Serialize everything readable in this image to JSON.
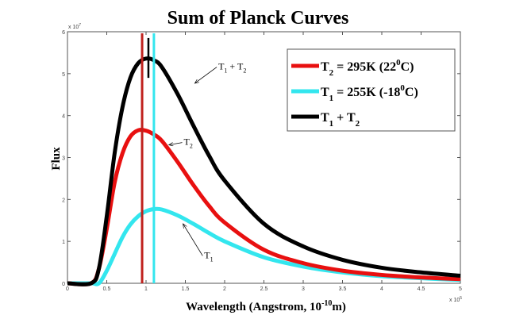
{
  "chart_data": {
    "type": "line",
    "title": "Sum of Planck Curves",
    "xlabel": "Wavelength (Angstrom, 10",
    "xlabel_exp": "-10",
    "xlabel_end": "m)",
    "ylabel": "Flux",
    "x_multiplier": "x 10",
    "x_multiplier_exp": "5",
    "y_multiplier": "x 10",
    "y_multiplier_exp": "7",
    "xlim": [
      0,
      5
    ],
    "ylim": [
      0,
      6
    ],
    "xticks": [
      "0",
      "0.5",
      "1",
      "1.5",
      "2",
      "2.5",
      "3",
      "3.5",
      "4",
      "4.5",
      "5"
    ],
    "yticks": [
      "0",
      "1",
      "2",
      "3",
      "4",
      "5",
      "6"
    ],
    "grid": false,
    "legend_position": "top-right",
    "x": [
      0,
      0.3,
      0.4,
      0.5,
      0.6,
      0.7,
      0.8,
      0.9,
      1.0,
      1.1,
      1.2,
      1.4,
      1.6,
      1.8,
      2.0,
      2.5,
      3.0,
      3.5,
      4.0,
      4.5,
      5.0
    ],
    "series": [
      {
        "key": "t2",
        "color": "#e81010",
        "legend": {
          "sym": "T",
          "sub": "2",
          "rest": " = 295K (22",
          "sup": "0",
          "end": "C)"
        },
        "values": [
          0,
          0,
          0.35,
          1.3,
          2.4,
          3.1,
          3.5,
          3.65,
          3.64,
          3.55,
          3.4,
          2.9,
          2.35,
          1.85,
          1.45,
          0.8,
          0.48,
          0.3,
          0.2,
          0.14,
          0.1
        ]
      },
      {
        "key": "t1",
        "color": "#33e6ee",
        "legend": {
          "sym": "T",
          "sub": "1",
          "rest": " = 255K (-18",
          "sup": "0",
          "end": "C)"
        },
        "values": [
          0,
          0,
          0,
          0.3,
          0.7,
          1.1,
          1.4,
          1.6,
          1.72,
          1.77,
          1.76,
          1.62,
          1.42,
          1.2,
          1.0,
          0.62,
          0.4,
          0.26,
          0.17,
          0.12,
          0.08
        ]
      },
      {
        "key": "sum",
        "color": "#000000",
        "legend": {
          "sym": "T",
          "sub": "1",
          "rest": " + T",
          "sup": "",
          "end": "",
          "sub2": "2"
        },
        "values": [
          0,
          0,
          0.35,
          1.6,
          3.1,
          4.2,
          4.9,
          5.25,
          5.36,
          5.32,
          5.16,
          4.52,
          3.77,
          3.05,
          2.45,
          1.42,
          0.88,
          0.56,
          0.37,
          0.26,
          0.18
        ]
      }
    ],
    "vertical_lines": [
      {
        "x": 0.95,
        "color": "#c0221e"
      },
      {
        "x": 1.1,
        "color": "#33e6ee"
      },
      {
        "x": 1.03,
        "color": "#000000",
        "y_range": [
          4.9,
          5.85
        ]
      }
    ],
    "annotations": [
      {
        "key": "sum",
        "sym": "T",
        "sub": "1",
        "mid": " + T",
        "sub2": "2",
        "text_at": [
          1.92,
          5.1
        ],
        "arrow_to": [
          1.62,
          4.77
        ]
      },
      {
        "key": "t2",
        "sym": "T",
        "sub": "2",
        "mid": "",
        "sub2": "",
        "text_at": [
          1.48,
          3.3
        ],
        "arrow_to": [
          1.29,
          3.3
        ]
      },
      {
        "key": "t1",
        "sym": "T",
        "sub": "1",
        "mid": "",
        "sub2": "",
        "text_at": [
          1.74,
          0.6
        ],
        "arrow_to": [
          1.47,
          1.42
        ]
      }
    ]
  }
}
